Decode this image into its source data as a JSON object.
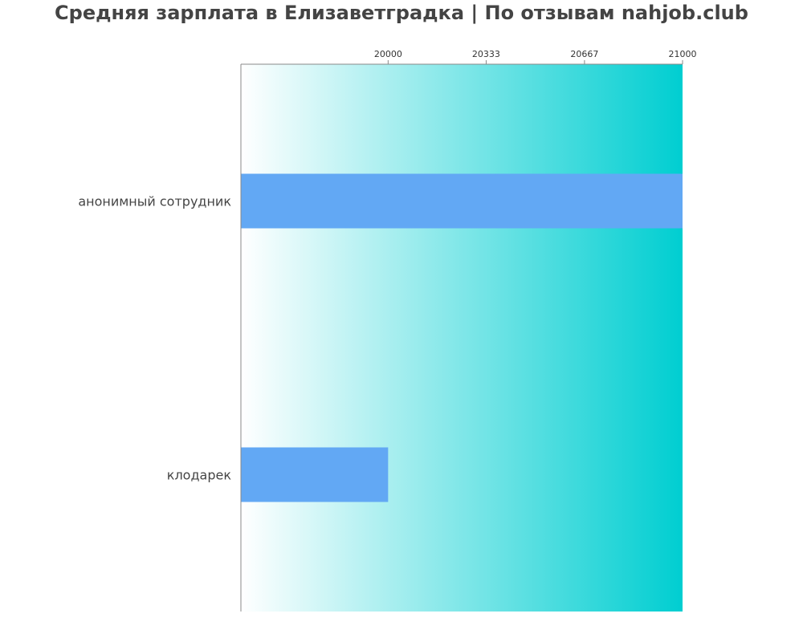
{
  "title": "Средняя зарплата в Елизаветградка | По отзывам nahjob.club",
  "chart_data": {
    "type": "bar",
    "orientation": "horizontal",
    "title": "Средняя зарплата в Елизаветградка | По отзывам nahjob.club",
    "categories": [
      "анонимный сотрудник",
      "клодарек"
    ],
    "values": [
      21000,
      20000
    ],
    "xticks": [
      "20000",
      "20333",
      "20667",
      "21000"
    ],
    "tick_values": [
      20000,
      20333,
      20667,
      21000
    ],
    "xlim": [
      19500,
      21000
    ],
    "xaxis_position": "top",
    "grid": false,
    "bar_color": "#62a8f4",
    "background_gradient": [
      "#ffffff",
      "#00ced1"
    ]
  }
}
